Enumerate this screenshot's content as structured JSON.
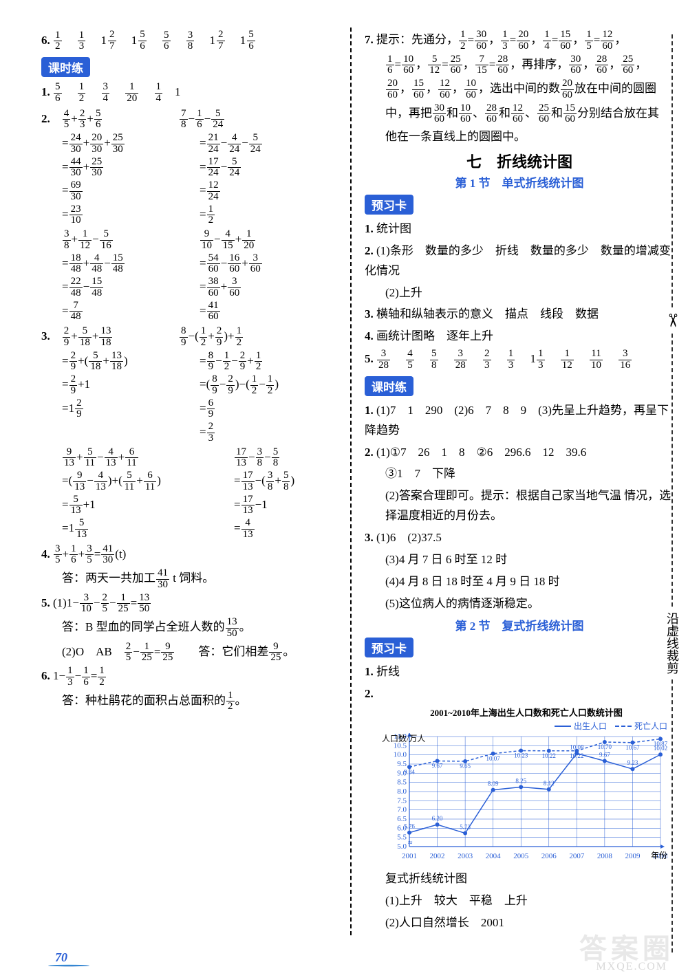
{
  "page_number": "70",
  "watermark": "答案圈",
  "watermark_sub": "MXQE.COM",
  "side_text": "沿虚线裁剪",
  "left": {
    "q6": [
      "1/2",
      "1/3",
      "1 2/7",
      "1 5/6",
      "5/6",
      "3/8",
      "1 2/7",
      "1 5/6"
    ],
    "badge1": "课时练",
    "q1": [
      "5/6",
      "1/2",
      "3/4",
      "1/20",
      "1/4",
      "1"
    ],
    "q2": {
      "row1_l": "4/5 + 2/3 + 5/6",
      "row1_r": "7/8 − 1/6 − 5/24",
      "l_steps": [
        "= 24/30 + 20/30 + 25/30",
        "= 44/30 + 25/30",
        "= 69/30",
        "= 23/10"
      ],
      "r_steps": [
        "= 21/24 − 4/24 − 5/24",
        "= 17/24 − 5/24",
        "= 12/24",
        "= 1/2"
      ],
      "row2_l": "3/8 + 1/12 − 5/16",
      "row2_r": "9/10 − 4/15 + 1/20",
      "l2_steps": [
        "= 18/48 + 4/48 − 15/48",
        "= 22/48 − 15/48",
        "= 7/48"
      ],
      "r2_steps": [
        "= 54/60 − 16/60 + 3/60",
        "= 38/60 + 3/60",
        "= 41/60"
      ]
    },
    "q3": {
      "row1_l": "2/9 + 5/18 + 13/18",
      "row1_r": "8/9 − (1/2 + 2/9) + 1/2",
      "l_steps": [
        "= 2/9 + (5/18 + 13/18)",
        "= 2/9 + 1",
        "= 1 2/9"
      ],
      "r_steps": [
        "= 8/9 − 1/2 − 2/9 + 1/2",
        "= (8/9 − 2/9) − (1/2 − 1/2)",
        "= 6/9",
        "= 2/3"
      ],
      "row2_l": "9/13 + 5/11 − 4/13 + 6/11",
      "row2_r": "17/13 − 3/8 − 5/8",
      "l2_steps": [
        "= (9/13 − 4/13) + (5/11 + 6/11)",
        "= 5/13 + 1",
        "= 1 5/13"
      ],
      "r2_steps": [
        "= 17/13 − (3/8 + 5/8)",
        "= 17/13 − 1",
        "= 4/13"
      ]
    },
    "q4_expr": "3/5 + 1/6 + 3/5 = 41/30 (t)",
    "q4_ans": "答：两天一共加工 41/30 t 饲料。",
    "q5_1_expr": "(1) 1 − 3/10 − 2/5 − 1/25 = 13/50",
    "q5_1_ans": "答：B 型血的同学占全班人数的 13/50。",
    "q5_2_expr": "(2) O   AB   2/5 − 1/25 = 9/25    答：它们相差 9/25。",
    "q6_expr": "1 − 1/3 − 1/6 = 1/2",
    "q6_ans": "答：种杜鹃花的面积占总面积的 1/2。"
  },
  "right": {
    "q7_line1": "提示：先通分，1/2 = 30/60，1/3 = 20/60，1/4 = 15/60，1/5 = 12/60，",
    "q7_line2": "1/6 = 10/60，5/12 = 25/60，7/15 = 28/60，再排序，30/60，28/60，25/60，",
    "q7_line3": "20/60，15/60，12/60，10/60，选出中间的数 20/60 放在中间的圆圈",
    "q7_line4": "中，再把 30/60 和 10/60、28/60 和 12/60、25/60 和 15/60 分别结合放在其",
    "q7_line5": "他在一条直线上的圆圈中。",
    "chapter": "七　折线统计图",
    "section1": "第 1 节　单式折线统计图",
    "badge_pre1": "预习卡",
    "p1": "统计图",
    "p2_1": "(1)条形　数量的多少　折线　数量的多少　数量的增减变化情况",
    "p2_2": "(2)上升",
    "p3": "横轴和纵轴表示的意义　描点　线段　数据",
    "p4": "画统计图略　逐年上升",
    "p5": [
      "3/28",
      "4/5",
      "5/8",
      "3/28",
      "2/3",
      "1/3",
      "1 1/3",
      "1/12",
      "11/10",
      "3/16"
    ],
    "badge_lesson": "课时练",
    "l1": "(1)7　1　290　(2)6　7　8　9　(3)先呈上升趋势，再呈下降趋势",
    "l2_1": "(1)①7　26　1　8　②6　296.6　12　39.6",
    "l2_2": "③1　7　下降",
    "l2_3": "(2)答案合理即可。提示：根据自己家当地气温 情况，选择温度相近的月份去。",
    "l3_1": "(1)6　(2)37.5",
    "l3_2": "(3)4 月 7 日 6 时至 12 时",
    "l3_3": "(4)4 月 8 日 18 时至 4 月 9 日 18 时",
    "l3_4": "(5)这位病人的病情逐渐稳定。",
    "section2": "第 2 节　复式折线统计图",
    "badge_pre2": "预习卡",
    "pp1": "折线",
    "chart": {
      "title": "2001~2010年上海出生人口数和死亡人口数统计图",
      "ylabel": "人口数/万人",
      "xlabel": "年份",
      "legend": [
        "出生人口",
        "死亡人口"
      ],
      "years": [
        "2001",
        "2002",
        "2003",
        "2004",
        "2005",
        "2006",
        "2007",
        "2008",
        "2009",
        "2010"
      ],
      "births": [
        5.76,
        6.2,
        5.73,
        8.09,
        8.25,
        8.12,
        10.08,
        9.67,
        9.23,
        10.02
      ],
      "deaths": [
        9.34,
        9.67,
        9.65,
        10.07,
        10.23,
        10.22,
        10.22,
        10.7,
        10.67,
        10.87
      ],
      "ylim": [
        5.0,
        11.0
      ],
      "ytick_step": 0.5,
      "colors": {
        "line": "#2a5fd6",
        "grid": "#2a5fd6",
        "axis": "#2a5fd6",
        "text": "#2a5fd6",
        "bg": "#ffffff"
      },
      "line_styles": {
        "births": "solid",
        "deaths": "dashed"
      },
      "marker": "circle",
      "marker_size": 3,
      "fontsize": {
        "title": 13,
        "label": 12,
        "tick": 11,
        "value": 9
      }
    },
    "chart_caption": "复式折线统计图",
    "cc1": "(1)上升　较大　平稳　上升",
    "cc2": "(2)人口自然增长　2001"
  }
}
